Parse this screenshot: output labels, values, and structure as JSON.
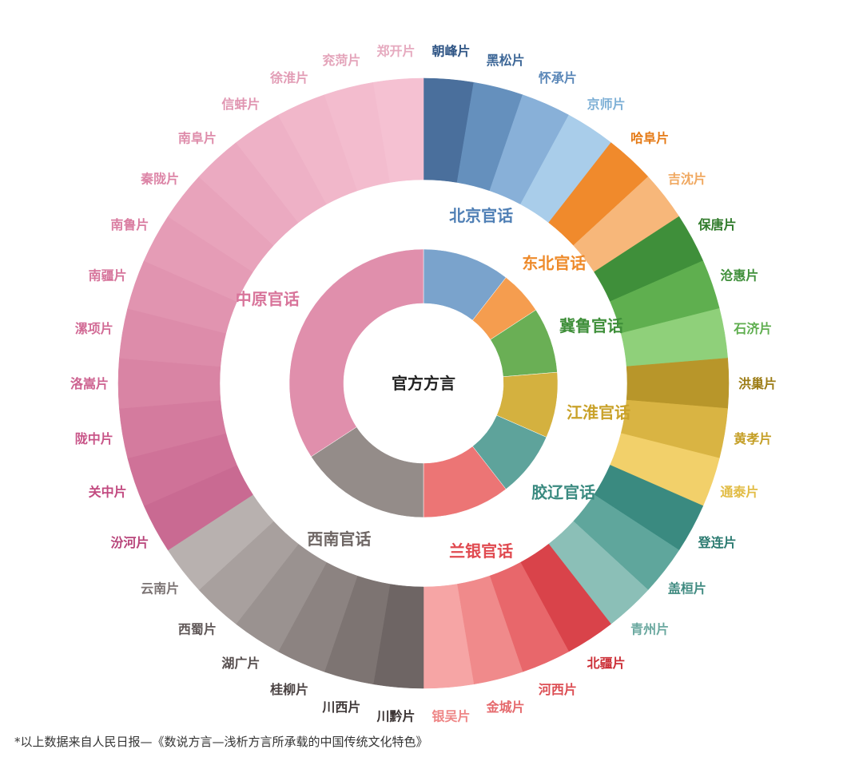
{
  "chart_data": {
    "type": "sunburst",
    "center_label": "官方方言",
    "groups": [
      {
        "name": "北京官话",
        "color": "#7aa3cc",
        "label_color": "#4f7fb5",
        "children": [
          {
            "name": "朝峰片",
            "value": 1,
            "color": "#4a6f9c",
            "label_color": "#2f5585"
          },
          {
            "name": "黑松片",
            "value": 1,
            "color": "#6590bd",
            "label_color": "#3d6797"
          },
          {
            "name": "怀承片",
            "value": 1,
            "color": "#88b0d8",
            "label_color": "#5a87b8"
          },
          {
            "name": "京师片",
            "value": 1,
            "color": "#a9cdea",
            "label_color": "#7eb0d6"
          }
        ]
      },
      {
        "name": "东北官话",
        "color": "#f59d4f",
        "label_color": "#ee8a2a",
        "children": [
          {
            "name": "哈阜片",
            "value": 1,
            "color": "#f08a2c",
            "label_color": "#e57a16"
          },
          {
            "name": "吉沈片",
            "value": 1,
            "color": "#f7b77a",
            "label_color": "#f0a860"
          }
        ]
      },
      {
        "name": "冀鲁官话",
        "color": "#6aaf55",
        "label_color": "#3f8f3a",
        "children": [
          {
            "name": "保唐片",
            "value": 1,
            "color": "#3f8f3a",
            "label_color": "#2f7a2a"
          },
          {
            "name": "沧惠片",
            "value": 1,
            "color": "#5faf4f",
            "label_color": "#3f8f3a"
          },
          {
            "name": "石济片",
            "value": 1,
            "color": "#8fd07a",
            "label_color": "#5fae4f"
          }
        ]
      },
      {
        "name": "江淮官话",
        "color": "#d4b13f",
        "label_color": "#c9a22a",
        "children": [
          {
            "name": "洪巢片",
            "value": 1,
            "color": "#b8962a",
            "label_color": "#9c7c15"
          },
          {
            "name": "黄孝片",
            "value": 1,
            "color": "#d9b443",
            "label_color": "#c49e25"
          },
          {
            "name": "通泰片",
            "value": 1,
            "color": "#f2d06a",
            "label_color": "#e2bc45"
          }
        ]
      },
      {
        "name": "胶辽官话",
        "color": "#5ea39b",
        "label_color": "#3a8a80",
        "children": [
          {
            "name": "登连片",
            "value": 1,
            "color": "#3a8a80",
            "label_color": "#2a7a70"
          },
          {
            "name": "盖桓片",
            "value": 1,
            "color": "#5fa69c",
            "label_color": "#3f8a80"
          },
          {
            "name": "青州片",
            "value": 1,
            "color": "#8bbfb7",
            "label_color": "#6aa89f"
          }
        ]
      },
      {
        "name": "兰银官话",
        "color": "#ec7575",
        "label_color": "#e04a50",
        "children": [
          {
            "name": "北疆片",
            "value": 1,
            "color": "#d9434a",
            "label_color": "#cc2f37"
          },
          {
            "name": "河西片",
            "value": 1,
            "color": "#e8676b",
            "label_color": "#dc4d53"
          },
          {
            "name": "金城片",
            "value": 1,
            "color": "#f08a8b",
            "label_color": "#e5696c"
          },
          {
            "name": "银吴片",
            "value": 1,
            "color": "#f6a5a5",
            "label_color": "#ee8585"
          }
        ]
      },
      {
        "name": "西南官话",
        "color": "#948c89",
        "label_color": "#6e6664",
        "children": [
          {
            "name": "川黔片",
            "value": 1,
            "color": "#6e6564",
            "label_color": "#3a3333"
          },
          {
            "name": "川西片",
            "value": 1,
            "color": "#7d7472",
            "label_color": "#3f3838"
          },
          {
            "name": "桂柳片",
            "value": 1,
            "color": "#8c8381",
            "label_color": "#4a4242"
          },
          {
            "name": "湖广片",
            "value": 1,
            "color": "#9a9290",
            "label_color": "#554d4d"
          },
          {
            "name": "西蜀片",
            "value": 1,
            "color": "#a8a09e",
            "label_color": "#5e5656"
          },
          {
            "name": "云南片",
            "value": 1,
            "color": "#b8b1af",
            "label_color": "#7a7272"
          }
        ]
      },
      {
        "name": "中原官话",
        "color": "#e08fac",
        "label_color": "#d8749a",
        "children": [
          {
            "name": "汾河片",
            "value": 1,
            "color": "#c96a92",
            "label_color": "#b8447a"
          },
          {
            "name": "关中片",
            "value": 1,
            "color": "#cf7298",
            "label_color": "#c24a80"
          },
          {
            "name": "陇中片",
            "value": 1,
            "color": "#d47b9e",
            "label_color": "#c85588"
          },
          {
            "name": "洛嵩片",
            "value": 1,
            "color": "#d984a4",
            "label_color": "#cd6290"
          },
          {
            "name": "漯项片",
            "value": 1,
            "color": "#dd8caa",
            "label_color": "#d26c96"
          },
          {
            "name": "南疆片",
            "value": 1,
            "color": "#e194b0",
            "label_color": "#d6749b"
          },
          {
            "name": "南鲁片",
            "value": 1,
            "color": "#e59cb6",
            "label_color": "#d97ca0"
          },
          {
            "name": "秦陇片",
            "value": 1,
            "color": "#e8a3bb",
            "label_color": "#dc84a6"
          },
          {
            "name": "南阜片",
            "value": 1,
            "color": "#ebaac1",
            "label_color": "#de8caa"
          },
          {
            "name": "信蚌片",
            "value": 1,
            "color": "#eeb1c6",
            "label_color": "#e094b0"
          },
          {
            "name": "徐淮片",
            "value": 1,
            "color": "#f1b7ca",
            "label_color": "#e29cb5"
          },
          {
            "name": "兖菏片",
            "value": 1,
            "color": "#f3bcce",
            "label_color": "#e4a4ba"
          },
          {
            "name": "郑开片",
            "value": 1,
            "color": "#f5c1d2",
            "label_color": "#e6aabf"
          }
        ]
      }
    ]
  },
  "footnote": "*以上数据来自人民日报—《数说方言—浅析方言所承载的中国传统文化特色》"
}
